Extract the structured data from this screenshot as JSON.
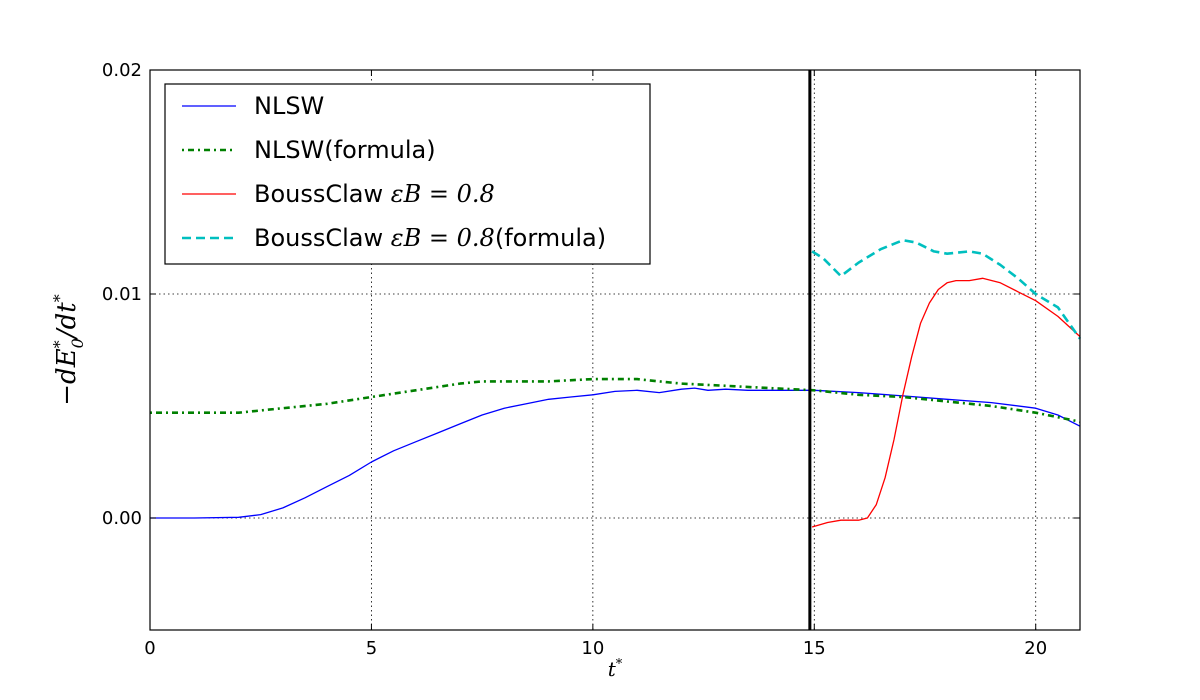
{
  "chart_data": {
    "type": "line",
    "xlabel": "t*",
    "ylabel": "−dE0*/dt*",
    "xlim": [
      0,
      21
    ],
    "ylim": [
      -0.005,
      0.02
    ],
    "xticks": [
      0,
      5,
      10,
      15,
      20
    ],
    "xtick_labels": [
      "0",
      "5",
      "10",
      "15",
      "20"
    ],
    "yticks": [
      0.0,
      0.01,
      0.02
    ],
    "ytick_labels": [
      "0.00",
      "0.01",
      "0.02"
    ],
    "grid": true,
    "legend_position": "upper-left",
    "vline": {
      "x": 14.9,
      "color": "#000000"
    },
    "series": [
      {
        "name": "NLSW",
        "legend_text": "NLSW",
        "legend_math": "",
        "legend_suffix": "",
        "color": "#0000ff",
        "style": "solid",
        "x": [
          0,
          1,
          2,
          2.5,
          3,
          3.5,
          4,
          4.5,
          5,
          5.5,
          6,
          6.5,
          7,
          7.5,
          8,
          8.5,
          9,
          9.5,
          10,
          10.5,
          11,
          11.5,
          12,
          12.3,
          12.6,
          13,
          13.5,
          14,
          14.5,
          15,
          16,
          17,
          18,
          19,
          20,
          20.5,
          21
        ],
        "y": [
          0.0,
          0.0,
          3e-05,
          0.00015,
          0.00045,
          0.0009,
          0.0014,
          0.0019,
          0.0025,
          0.003,
          0.0034,
          0.0038,
          0.0042,
          0.0046,
          0.0049,
          0.0051,
          0.0053,
          0.0054,
          0.0055,
          0.00565,
          0.0057,
          0.0056,
          0.00575,
          0.0058,
          0.0057,
          0.00575,
          0.0057,
          0.0057,
          0.0057,
          0.0057,
          0.0056,
          0.00545,
          0.0053,
          0.00515,
          0.0049,
          0.0046,
          0.0041
        ]
      },
      {
        "name": "NLSW(formula)",
        "legend_text": "NLSW(formula)",
        "legend_math": "",
        "legend_suffix": "",
        "color": "#008000",
        "style": "dashdot",
        "x": [
          0,
          1,
          2,
          3,
          4,
          5,
          6,
          7,
          7.5,
          8,
          9,
          10,
          11,
          11.5,
          12,
          13,
          14,
          15,
          16,
          17,
          18,
          19,
          20,
          21
        ],
        "y": [
          0.0047,
          0.0047,
          0.0047,
          0.0049,
          0.0051,
          0.0054,
          0.0057,
          0.006,
          0.0061,
          0.0061,
          0.0061,
          0.0062,
          0.0062,
          0.0061,
          0.006,
          0.0059,
          0.0058,
          0.0057,
          0.0055,
          0.0054,
          0.0052,
          0.005,
          0.0047,
          0.0043
        ]
      },
      {
        "name": "BoussClaw εB = 0.8",
        "legend_text": "BoussClaw ",
        "legend_math": "εB = 0.8",
        "legend_suffix": "",
        "color": "#ff0000",
        "style": "solid",
        "x": [
          14.95,
          15.3,
          15.6,
          16,
          16.2,
          16.4,
          16.6,
          16.8,
          17,
          17.2,
          17.4,
          17.6,
          17.8,
          18,
          18.2,
          18.5,
          18.8,
          19.2,
          19.6,
          20,
          20.5,
          21
        ],
        "y": [
          -0.0004,
          -0.0002,
          -0.0001,
          -0.0001,
          0.0,
          0.0006,
          0.0018,
          0.0035,
          0.0055,
          0.0072,
          0.0087,
          0.0096,
          0.0102,
          0.0105,
          0.0106,
          0.0106,
          0.0107,
          0.0105,
          0.0101,
          0.0097,
          0.009,
          0.0081
        ]
      },
      {
        "name": "BoussClaw εB = 0.8(formula)",
        "legend_text": "BoussClaw ",
        "legend_math": "εB = 0.8",
        "legend_suffix": "(formula)",
        "color": "#00bfbf",
        "style": "dashed",
        "x": [
          14.95,
          15.2,
          15.6,
          16,
          16.5,
          17,
          17.3,
          17.7,
          18,
          18.5,
          18.8,
          19.2,
          19.6,
          20,
          20.5,
          21
        ],
        "y": [
          0.0119,
          0.0116,
          0.0108,
          0.0114,
          0.012,
          0.0124,
          0.0123,
          0.0119,
          0.0118,
          0.0119,
          0.0118,
          0.0113,
          0.0107,
          0.01,
          0.0094,
          0.008
        ]
      }
    ]
  }
}
